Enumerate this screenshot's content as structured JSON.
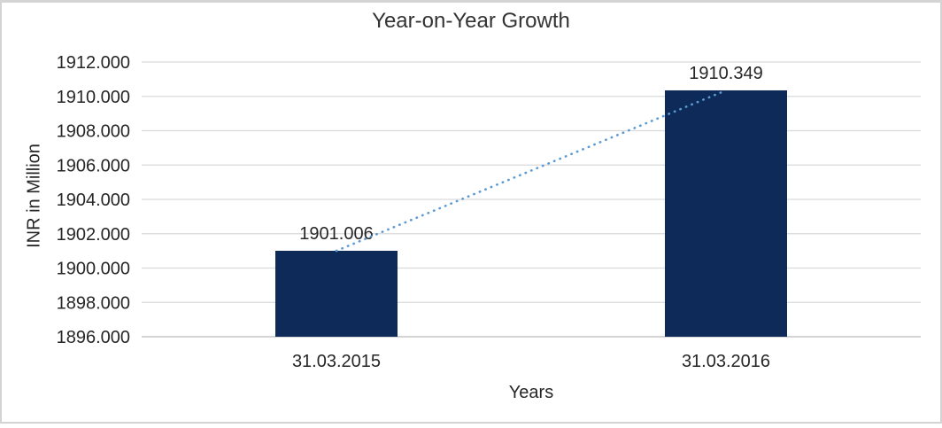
{
  "chart_data": {
    "type": "bar",
    "title": "Year-on-Year Growth",
    "xlabel": "Years",
    "ylabel": "INR in Million",
    "categories": [
      "31.03.2015",
      "31.03.2016"
    ],
    "series": [
      {
        "name": "Year-on-Year Growth",
        "values": [
          1901.006,
          1910.349
        ]
      }
    ],
    "data_labels": [
      "1901.006",
      "1910.349"
    ],
    "ylim": [
      1896,
      1912
    ],
    "ytick_step": 2,
    "yticks": [
      {
        "value": 1896,
        "label": "1896.000"
      },
      {
        "value": 1898,
        "label": "1898.000"
      },
      {
        "value": 1900,
        "label": "1900.000"
      },
      {
        "value": 1902,
        "label": "1902.000"
      },
      {
        "value": 1904,
        "label": "1904.000"
      },
      {
        "value": 1906,
        "label": "1906.000"
      },
      {
        "value": 1908,
        "label": "1908.000"
      },
      {
        "value": 1910,
        "label": "1910.000"
      },
      {
        "value": 1912,
        "label": "1912.000"
      }
    ],
    "grid": true,
    "legend": "none",
    "trendline": {
      "type": "linear",
      "style": "dotted",
      "connects": "bar tops",
      "color": "#5B9BD5"
    },
    "colors": {
      "bar": "#0E2A58",
      "gridline": "#D9D9D9",
      "axis_line": "#C8C8C8",
      "text": "#262626",
      "title": "#333333",
      "trendline": "#5B9BD5",
      "chart_border": "#D4D4D4",
      "background": "#FFFFFF"
    }
  }
}
